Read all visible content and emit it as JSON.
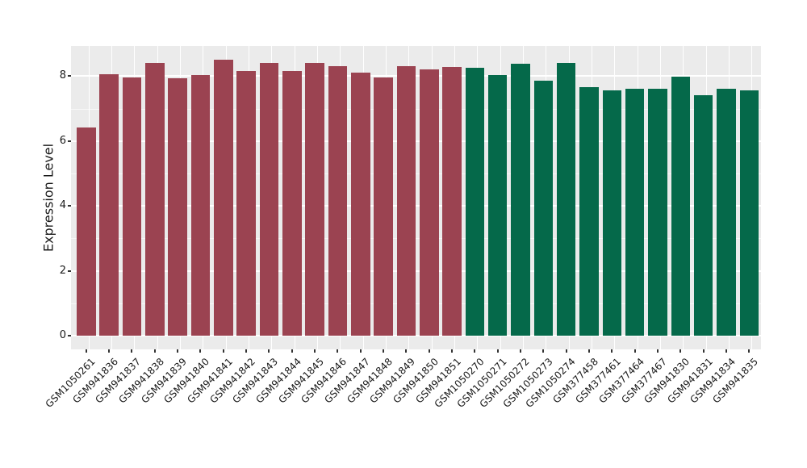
{
  "figure": {
    "background": "#ffffff",
    "panel_background": "#ebebeb",
    "grid_major_color": "#ffffff",
    "grid_minor_color": "rgba(255,255,255,0.65)",
    "tick_mark_color": "#333333",
    "text_color": "#1a1a1a"
  },
  "chart_data": {
    "type": "bar",
    "title": "",
    "xlabel": "",
    "ylabel": "Expression Level",
    "ylim": [
      0,
      8.95
    ],
    "yticks": [
      0,
      2,
      4,
      6,
      8
    ],
    "grid": "on",
    "legend_position": "none",
    "categories": [
      "GSM1050261",
      "GSM941836",
      "GSM941837",
      "GSM941838",
      "GSM941839",
      "GSM941840",
      "GSM941841",
      "GSM941842",
      "GSM941843",
      "GSM941844",
      "GSM941845",
      "GSM941846",
      "GSM941847",
      "GSM941848",
      "GSM941849",
      "GSM941850",
      "GSM941851",
      "GSM1050270",
      "GSM1050271",
      "GSM1050272",
      "GSM1050273",
      "GSM1050274",
      "GSM377458",
      "GSM377461",
      "GSM377464",
      "GSM377467",
      "GSM941830",
      "GSM941831",
      "GSM941834",
      "GSM941835"
    ],
    "series": [
      {
        "name": "Expression Level",
        "values": [
          6.42,
          8.07,
          7.97,
          8.42,
          7.93,
          8.03,
          8.51,
          8.16,
          8.4,
          8.17,
          8.42,
          8.31,
          8.1,
          7.95,
          8.31,
          8.2,
          8.28,
          8.26,
          8.03,
          8.38,
          7.87,
          8.42,
          7.65,
          7.55,
          7.62,
          7.62,
          7.99,
          7.42,
          7.62,
          7.55
        ]
      }
    ],
    "groups": [
      {
        "name": "group-maroon",
        "color": "#9b4351",
        "from": 0,
        "to": 16
      },
      {
        "name": "group-green",
        "color": "#05694a",
        "from": 17,
        "to": 29
      }
    ]
  }
}
